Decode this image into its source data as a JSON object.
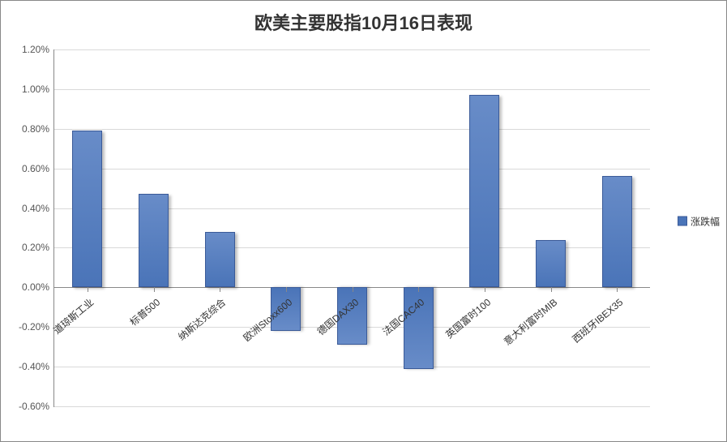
{
  "chart": {
    "type": "bar",
    "title": "欧美主要股指10月16日表现",
    "title_fontsize": 22,
    "background_color": "#ffffff",
    "border_color": "#888888",
    "categories": [
      "道琼斯工业",
      "标普500",
      "纳斯达克综合",
      "欧洲Stoxx600",
      "德国DAX30",
      "法国CAC40",
      "英国富时100",
      "意大利富时MIB",
      "西班牙IBEX35"
    ],
    "values": [
      0.79,
      0.47,
      0.28,
      -0.22,
      -0.29,
      -0.41,
      0.97,
      0.24,
      0.56
    ],
    "bar_color": "#4a74b8",
    "bar_border_color": "#3a5a98",
    "bar_gradient_top": "#688cc8",
    "bar_gradient_bottom": "#4a74b8",
    "bar_width": 0.45,
    "shadow_color": "rgba(0,0,0,0.25)",
    "y_axis": {
      "min": -0.6,
      "max": 1.2,
      "tick_step": 0.2,
      "ticks": [
        -0.6,
        -0.4,
        -0.2,
        0.0,
        0.2,
        0.4,
        0.6,
        0.8,
        1.0,
        1.2
      ],
      "tick_labels": [
        "-0.60%",
        "-0.40%",
        "-0.20%",
        "0.00%",
        "0.20%",
        "0.40%",
        "0.60%",
        "0.80%",
        "1.00%",
        "1.20%"
      ],
      "label_fontsize": 12,
      "label_color": "#555555",
      "grid_color": "#d9d9d9"
    },
    "x_axis": {
      "label_fontsize": 12,
      "label_color": "#333333",
      "label_rotation": -40
    },
    "legend": {
      "label": "涨跌幅",
      "position": "right",
      "swatch_color": "#4a74b8",
      "fontsize": 12
    }
  }
}
